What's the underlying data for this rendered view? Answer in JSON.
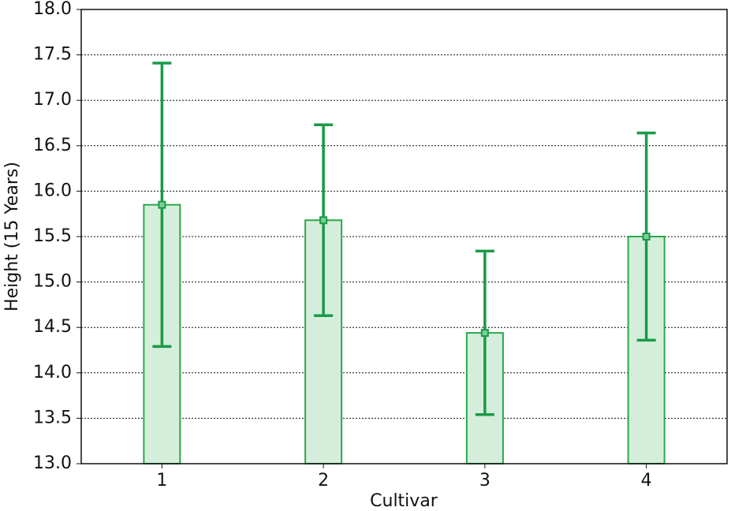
{
  "chart_data": {
    "type": "bar",
    "x_label": "Cultivar",
    "y_label": "Height (15 Years)",
    "categories": [
      "1",
      "2",
      "3",
      "4"
    ],
    "values": [
      15.85,
      15.68,
      14.44,
      15.5
    ],
    "errors": [
      1.56,
      1.05,
      0.9,
      1.14
    ],
    "color": "#d5eedb",
    "edge_color": "#2aa84a",
    "error_color": "#1a9a48",
    "ylim": [
      13.0,
      18.0
    ],
    "yticks": [
      {
        "value": 13,
        "label": "13.0"
      },
      {
        "value": 13.5,
        "label": "13.5"
      },
      {
        "value": 14,
        "label": "14.0"
      },
      {
        "value": 14.5,
        "label": "14.5"
      },
      {
        "value": 15,
        "label": "15.0"
      },
      {
        "value": 15.5,
        "label": "15.5"
      },
      {
        "value": 16,
        "label": "16.0"
      },
      {
        "value": 16.5,
        "label": "16.5"
      },
      {
        "value": 17,
        "label": "17.0"
      },
      {
        "value": 17.5,
        "label": "17.5"
      },
      {
        "value": 18,
        "label": "18.0"
      }
    ],
    "grid": true
  }
}
